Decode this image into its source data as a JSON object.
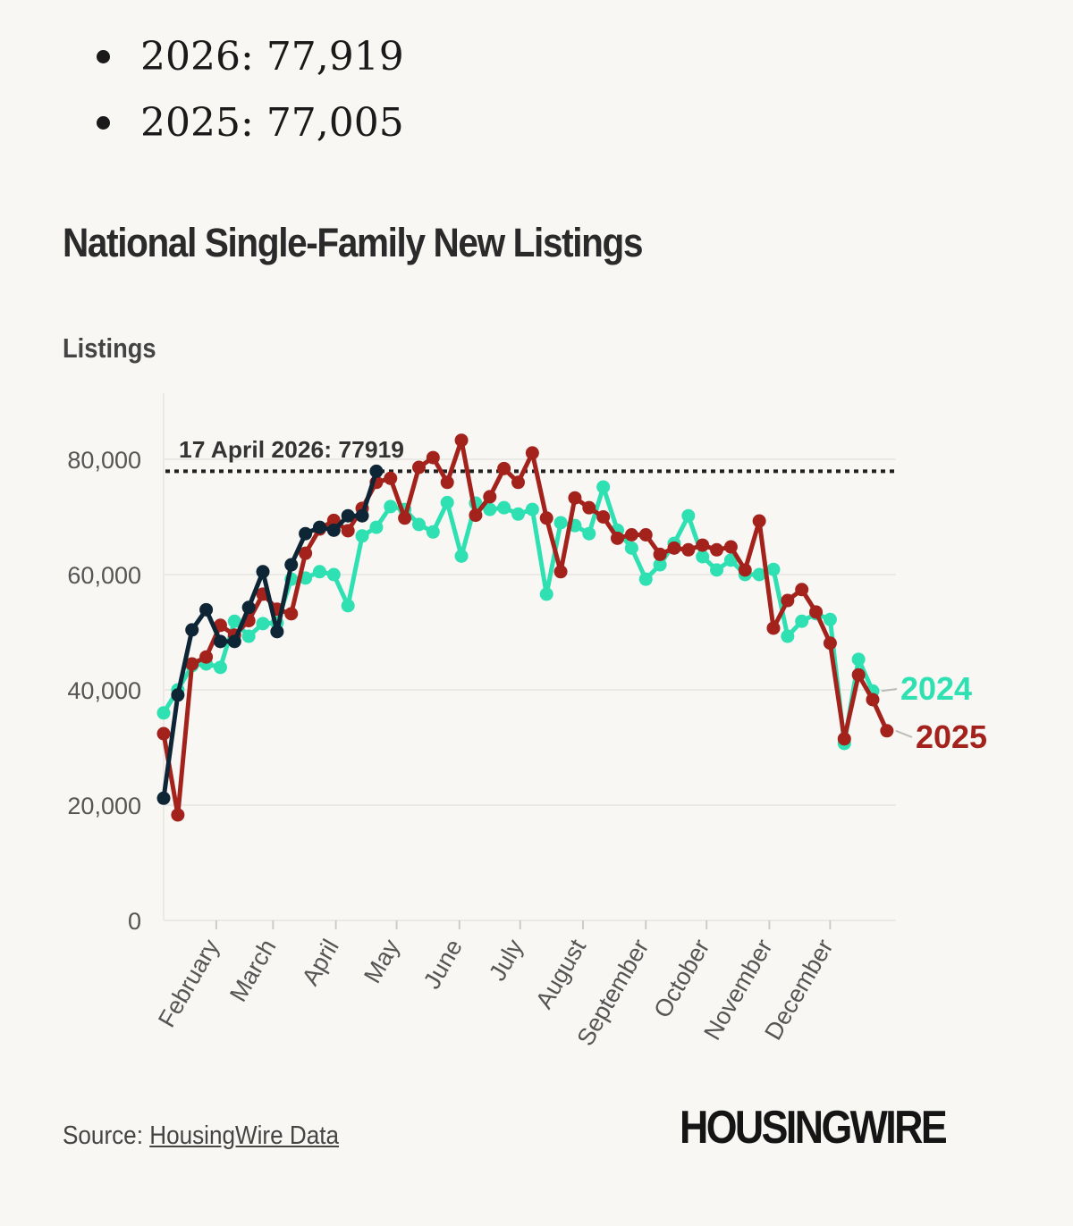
{
  "bullets": [
    {
      "year": "2026:",
      "value": "77,919"
    },
    {
      "year": "2025:",
      "value": "77,005"
    }
  ],
  "source": {
    "prefix": "Source:",
    "link": "HousingWire Data"
  },
  "logo": "HOUSINGWIRE",
  "chart_data": {
    "type": "line",
    "title": "National Single-Family New Listings",
    "ylabel": "Listings",
    "xlabel": "",
    "ylim": [
      0,
      90000
    ],
    "yticks": [
      0,
      20000,
      40000,
      60000,
      80000
    ],
    "ytick_labels": [
      "0",
      "20,000",
      "40,000",
      "60,000",
      "80,000"
    ],
    "x_month_labels": [
      "February",
      "March",
      "April",
      "May",
      "June",
      "July",
      "August",
      "September",
      "October",
      "November",
      "December"
    ],
    "x_unit": "week of year",
    "grid": true,
    "annotation": {
      "label": "17 April 2026: 77919",
      "value": 77919
    },
    "series": [
      {
        "name": "2024",
        "color": "#2ee0b2",
        "labeled": true,
        "values": [
          36000,
          40000,
          44200,
          44500,
          43900,
          51900,
          49300,
          51500,
          51600,
          59200,
          59400,
          60500,
          60000,
          54600,
          66700,
          68200,
          71800,
          71300,
          68700,
          67400,
          72500,
          63200,
          72400,
          71300,
          71600,
          70500,
          71300,
          56600,
          69000,
          68500,
          67100,
          75200,
          67700,
          64600,
          59200,
          61700,
          65400,
          70200,
          63100,
          60800,
          62500,
          60000,
          60000,
          60900,
          49300,
          51900,
          53200,
          52200,
          30700,
          45300,
          39800
        ]
      },
      {
        "name": "2025",
        "color": "#a3221c",
        "labeled": true,
        "values": [
          32400,
          18300,
          44500,
          45700,
          51200,
          49500,
          52000,
          56600,
          54000,
          53200,
          63700,
          67900,
          69400,
          67600,
          71500,
          76000,
          76700,
          69800,
          78600,
          80300,
          76000,
          83300,
          70300,
          73500,
          78400,
          76000,
          81100,
          69800,
          60500,
          73300,
          71600,
          70000,
          66300,
          66900,
          66900,
          63500,
          64600,
          64300,
          65100,
          64300,
          64800,
          60800,
          69300,
          50700,
          55500,
          57400,
          53500,
          48100,
          31500,
          42600,
          38300,
          32900
        ]
      },
      {
        "name": "2026",
        "color": "#0e2536",
        "labeled": false,
        "values": [
          21200,
          39100,
          50400,
          53900,
          48400,
          48400,
          54300,
          60500,
          50100,
          61700,
          67100,
          68200,
          67700,
          70200,
          70200,
          77919
        ]
      }
    ]
  }
}
